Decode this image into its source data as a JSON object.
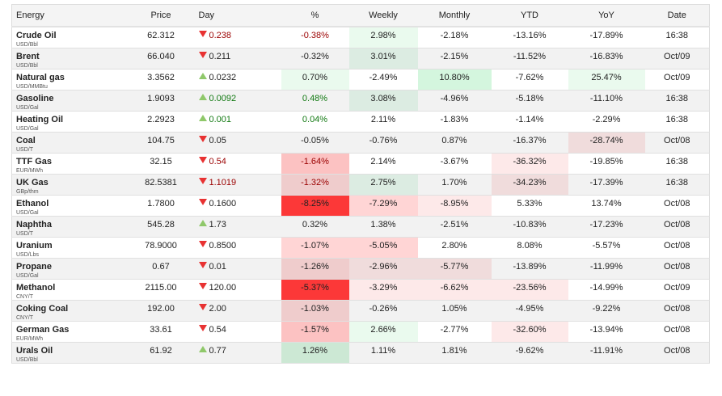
{
  "headers": [
    "Energy",
    "Price",
    "Day",
    "%",
    "Weekly",
    "Monthly",
    "YTD",
    "YoY",
    "Date"
  ],
  "colors": {
    "down_arrow": "#e83232",
    "up_arrow": "#8fc86a",
    "negative_text": "#9b0000",
    "positive_text": "#137a13"
  },
  "rows": [
    {
      "name": "Crude Oil",
      "unit": "USD/Bbl",
      "price": "62.312",
      "dir": "down",
      "day": "0.238",
      "pct": "-0.38%",
      "weekly": "2.98%",
      "monthly": "-2.18%",
      "ytd": "-13.16%",
      "yoy": "-17.89%",
      "date": "16:38",
      "live": true,
      "bg": {
        "weekly": "#eafaee"
      }
    },
    {
      "name": "Brent",
      "unit": "USD/Bbl",
      "price": "66.040",
      "dir": "down",
      "day": "0.211",
      "pct": "-0.32%",
      "weekly": "3.01%",
      "monthly": "-2.15%",
      "ytd": "-11.52%",
      "yoy": "-16.83%",
      "date": "Oct/09",
      "bg": {
        "weekly": "#dcece2"
      }
    },
    {
      "name": "Natural gas",
      "unit": "USD/MMBtu",
      "price": "3.3562",
      "dir": "up",
      "day": "0.0232",
      "pct": "0.70%",
      "weekly": "-2.49%",
      "monthly": "10.80%",
      "ytd": "-7.62%",
      "yoy": "25.47%",
      "date": "Oct/09",
      "bg": {
        "pct": "#eafaee",
        "monthly": "#d4f6de",
        "yoy": "#eafaee"
      }
    },
    {
      "name": "Gasoline",
      "unit": "USD/Gal",
      "price": "1.9093",
      "dir": "up",
      "day": "0.0092",
      "pct": "0.48%",
      "weekly": "3.08%",
      "monthly": "-4.96%",
      "ytd": "-5.18%",
      "yoy": "-11.10%",
      "date": "16:38",
      "live": true,
      "bg": {
        "weekly": "#dcece2"
      }
    },
    {
      "name": "Heating Oil",
      "unit": "USD/Gal",
      "price": "2.2923",
      "dir": "up",
      "day": "0.001",
      "pct": "0.04%",
      "weekly": "2.11%",
      "monthly": "-1.83%",
      "ytd": "-1.14%",
      "yoy": "-2.29%",
      "date": "16:38",
      "live": true,
      "bg": {}
    },
    {
      "name": "Coal",
      "unit": "USD/T",
      "price": "104.75",
      "dir": "down",
      "day": "0.05",
      "pct": "-0.05%",
      "weekly": "-0.76%",
      "monthly": "0.87%",
      "ytd": "-16.37%",
      "yoy": "-28.74%",
      "date": "Oct/08",
      "bg": {
        "yoy": "#f0dcdc"
      }
    },
    {
      "name": "TTF Gas",
      "unit": "EUR/MWh",
      "price": "32.15",
      "dir": "down",
      "day": "0.54",
      "pct": "-1.64%",
      "weekly": "2.14%",
      "monthly": "-3.67%",
      "ytd": "-36.32%",
      "yoy": "-19.85%",
      "date": "16:38",
      "live": true,
      "bg": {
        "pct": "#fcc2c2",
        "ytd": "#fde9e9"
      }
    },
    {
      "name": "UK Gas",
      "unit": "GBp/thm",
      "price": "82.5381",
      "dir": "down",
      "day": "1.1019",
      "pct": "-1.32%",
      "weekly": "2.75%",
      "monthly": "1.70%",
      "ytd": "-34.23%",
      "yoy": "-17.39%",
      "date": "16:38",
      "live": true,
      "bg": {
        "pct": "#efcccc",
        "weekly": "#dcece2",
        "ytd": "#f0dcdc"
      }
    },
    {
      "name": "Ethanol",
      "unit": "USD/Gal",
      "price": "1.7800",
      "dir": "down",
      "day": "0.1600",
      "pct": "-8.25%",
      "weekly": "-7.29%",
      "monthly": "-8.95%",
      "ytd": "5.33%",
      "yoy": "13.74%",
      "date": "Oct/08",
      "bg": {
        "pct": "#fc3838",
        "weekly": "#ffd5d5",
        "monthly": "#fde9e9"
      }
    },
    {
      "name": "Naphtha",
      "unit": "USD/T",
      "price": "545.28",
      "dir": "up",
      "day": "1.73",
      "pct": "0.32%",
      "weekly": "1.38%",
      "monthly": "-2.51%",
      "ytd": "-10.83%",
      "yoy": "-17.23%",
      "date": "Oct/08",
      "bg": {}
    },
    {
      "name": "Uranium",
      "unit": "USD/Lbs",
      "price": "78.9000",
      "dir": "down",
      "day": "0.8500",
      "pct": "-1.07%",
      "weekly": "-5.05%",
      "monthly": "2.80%",
      "ytd": "8.08%",
      "yoy": "-5.57%",
      "date": "Oct/08",
      "bg": {
        "pct": "#ffd5d5",
        "weekly": "#ffd5d5"
      }
    },
    {
      "name": "Propane",
      "unit": "USD/Gal",
      "price": "0.67",
      "dir": "down",
      "day": "0.01",
      "pct": "-1.26%",
      "weekly": "-2.96%",
      "monthly": "-5.77%",
      "ytd": "-13.89%",
      "yoy": "-11.99%",
      "date": "Oct/08",
      "bg": {
        "pct": "#efcccc",
        "weekly": "#f0dcdc",
        "monthly": "#f0dcdc"
      }
    },
    {
      "name": "Methanol",
      "unit": "CNY/T",
      "price": "2115.00",
      "dir": "down",
      "day": "120.00",
      "pct": "-5.37%",
      "weekly": "-3.29%",
      "monthly": "-6.62%",
      "ytd": "-23.56%",
      "yoy": "-14.99%",
      "date": "Oct/09",
      "bg": {
        "pct": "#fc3838",
        "weekly": "#fde9e9",
        "monthly": "#fde9e9",
        "ytd": "#fde9e9"
      }
    },
    {
      "name": "Coking Coal",
      "unit": "CNY/T",
      "price": "192.00",
      "dir": "down",
      "day": "2.00",
      "pct": "-1.03%",
      "weekly": "-0.26%",
      "monthly": "1.05%",
      "ytd": "-4.95%",
      "yoy": "-9.22%",
      "date": "Oct/08",
      "bg": {
        "pct": "#efcccc"
      }
    },
    {
      "name": "German Gas",
      "unit": "EUR/MWh",
      "price": "33.61",
      "dir": "down",
      "day": "0.54",
      "pct": "-1.57%",
      "weekly": "2.66%",
      "monthly": "-2.77%",
      "ytd": "-32.60%",
      "yoy": "-13.94%",
      "date": "Oct/08",
      "bg": {
        "pct": "#fcc2c2",
        "weekly": "#eafaee",
        "ytd": "#fde9e9"
      }
    },
    {
      "name": "Urals Oil",
      "unit": "USD/Bbl",
      "price": "61.92",
      "dir": "up",
      "day": "0.77",
      "pct": "1.26%",
      "weekly": "1.11%",
      "monthly": "1.81%",
      "ytd": "-9.62%",
      "yoy": "-11.91%",
      "date": "Oct/08",
      "bg": {
        "pct": "#cce8d4"
      }
    }
  ]
}
